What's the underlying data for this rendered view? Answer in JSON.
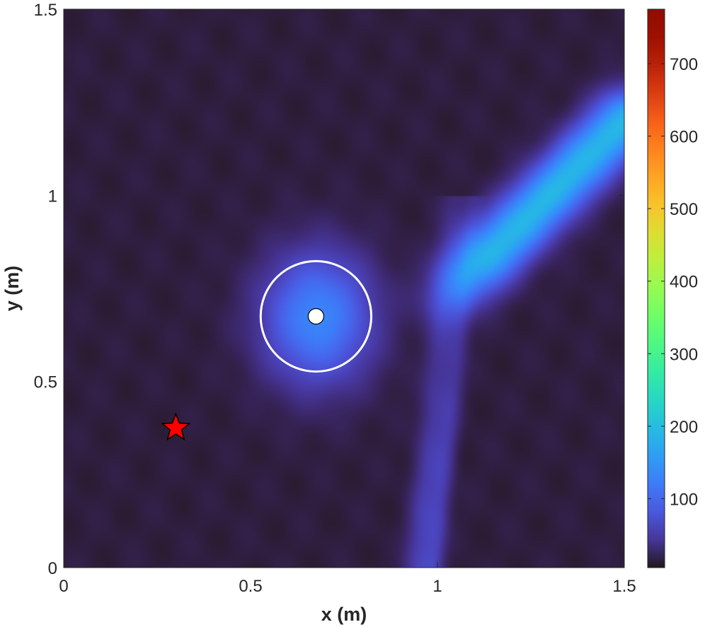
{
  "chart_data": {
    "type": "heatmap",
    "title": "",
    "xlabel": "x (m)",
    "ylabel": "y (m)",
    "xlim": [
      0,
      1.5
    ],
    "ylim": [
      0,
      1.5
    ],
    "x_ticks": [
      0,
      0.5,
      1,
      1.5
    ],
    "x_tick_labels": [
      "0",
      "0.5",
      "1",
      "1.5"
    ],
    "y_ticks": [
      0,
      0.5,
      1,
      1.5
    ],
    "y_tick_labels": [
      "0",
      "0.5",
      "1",
      "1.5"
    ],
    "colorbar": {
      "colormap": "turbo",
      "range": [
        5,
        775
      ],
      "ticks": [
        100,
        200,
        300,
        400,
        500,
        600,
        700
      ],
      "tick_labels": [
        "100",
        "200",
        "300",
        "400",
        "500",
        "600",
        "700"
      ]
    },
    "field_features": [
      {
        "kind": "gaussian-spot",
        "center": [
          0.68,
          0.67
        ],
        "peak": 120,
        "sigma_x": 0.1,
        "sigma_y": 0.12
      },
      {
        "kind": "beam",
        "from": [
          1.5,
          1.2
        ],
        "to": [
          1.0,
          0.7
        ],
        "peak": 175,
        "width": 0.055
      },
      {
        "kind": "streak",
        "x_at_y0": 0.95,
        "x_at_y1": 1.05,
        "peak": 42,
        "width": 0.028
      },
      {
        "kind": "streak",
        "x_at_y0": 0.99,
        "x_at_y1": 1.1,
        "peak": 34,
        "width": 0.02
      }
    ],
    "background_value": 14,
    "markers": [
      {
        "kind": "circle-outline",
        "center": [
          0.675,
          0.675
        ],
        "radius": 0.148,
        "color": "#ffffff"
      },
      {
        "kind": "dot",
        "center": [
          0.675,
          0.675
        ],
        "fill": "#ffffff",
        "edge": "#000000"
      },
      {
        "kind": "star",
        "center": [
          0.3,
          0.375
        ],
        "fill": "#ff0000",
        "edge": "#000000"
      }
    ]
  },
  "colors": {
    "axes_text": "#262626",
    "axes_line": "#262626"
  }
}
